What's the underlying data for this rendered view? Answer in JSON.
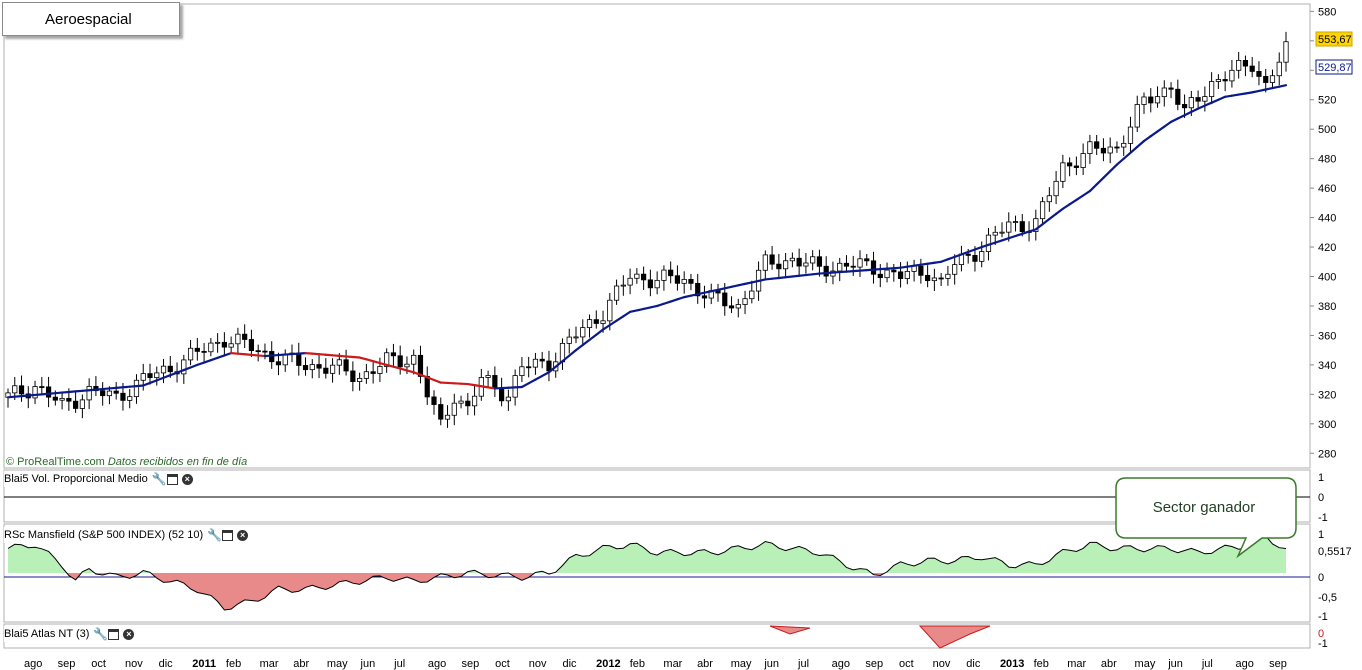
{
  "title": "Aeroespacial",
  "credit": {
    "brand": "© ProRealTime.com",
    "source": "Datos recibidos en fin de día"
  },
  "colors": {
    "candle_up": "#ffffff",
    "candle_down": "#000000",
    "ma_up": "#0a1a8c",
    "ma_down": "#cc1a1a",
    "rs_pos": "#b8f0b8",
    "rs_neg": "#e88a8a",
    "callout_border": "#3a7a2a"
  },
  "panels": {
    "vol": {
      "label": "Blai5 Vol. Proporcional Medio",
      "ticks": [
        "1",
        "0",
        "-1"
      ]
    },
    "rs": {
      "label": "RSc Mansfield (S&P 500 INDEX) (52 10)",
      "ticks": [
        "1",
        "0,5517",
        "0",
        "-0,5",
        "-1"
      ]
    },
    "atlas": {
      "label": "Blai5 Atlas NT (3)",
      "ticks": [
        "0",
        "-1"
      ]
    }
  },
  "callout": {
    "text": "Sector ganador"
  },
  "price_labels": {
    "last": "553,67",
    "ma": "529,87"
  },
  "chart_data": {
    "type": "candlestick",
    "ylim": [
      270,
      585
    ],
    "y_ticks": [
      280,
      300,
      320,
      340,
      360,
      380,
      400,
      420,
      440,
      460,
      480,
      500,
      520,
      540,
      560,
      580
    ],
    "x_labels": [
      "ago",
      "sep",
      "oct",
      "nov",
      "dic",
      "2011",
      "feb",
      "mar",
      "abr",
      "may",
      "jun",
      "jul",
      "ago",
      "sep",
      "oct",
      "nov",
      "dic",
      "2012",
      "feb",
      "mar",
      "abr",
      "may",
      "jun",
      "jul",
      "ago",
      "sep",
      "oct",
      "nov",
      "dic",
      "2013",
      "feb",
      "mar",
      "abr",
      "may",
      "jun",
      "jul",
      "ago",
      "sep"
    ],
    "close_path": [
      [
        0,
        318
      ],
      [
        4,
        326
      ],
      [
        8,
        312
      ],
      [
        12,
        322
      ],
      [
        16,
        318
      ],
      [
        20,
        330
      ],
      [
        24,
        338
      ],
      [
        28,
        348
      ],
      [
        32,
        358
      ],
      [
        36,
        352
      ],
      [
        40,
        344
      ],
      [
        44,
        340
      ],
      [
        48,
        338
      ],
      [
        52,
        332
      ],
      [
        56,
        342
      ],
      [
        60,
        345
      ],
      [
        62,
        320
      ],
      [
        64,
        298
      ],
      [
        66,
        320
      ],
      [
        68,
        310
      ],
      [
        70,
        330
      ],
      [
        74,
        320
      ],
      [
        76,
        338
      ],
      [
        80,
        342
      ],
      [
        84,
        360
      ],
      [
        88,
        376
      ],
      [
        92,
        400
      ],
      [
        96,
        398
      ],
      [
        100,
        398
      ],
      [
        104,
        385
      ],
      [
        108,
        380
      ],
      [
        112,
        408
      ],
      [
        116,
        412
      ],
      [
        120,
        405
      ],
      [
        124,
        408
      ],
      [
        128,
        406
      ],
      [
        132,
        400
      ],
      [
        136,
        404
      ],
      [
        138,
        395
      ],
      [
        140,
        408
      ],
      [
        144,
        420
      ],
      [
        148,
        435
      ],
      [
        152,
        436
      ],
      [
        156,
        475
      ],
      [
        160,
        485
      ],
      [
        164,
        488
      ],
      [
        168,
        518
      ],
      [
        172,
        530
      ],
      [
        174,
        510
      ],
      [
        178,
        532
      ],
      [
        182,
        540
      ],
      [
        184,
        545
      ],
      [
        186,
        530
      ],
      [
        189,
        553.67
      ]
    ],
    "ma_path": [
      [
        0,
        318
      ],
      [
        10,
        322
      ],
      [
        20,
        326
      ],
      [
        28,
        340
      ],
      [
        33,
        348
      ],
      [
        38,
        346
      ],
      [
        44,
        348
      ],
      [
        52,
        345
      ],
      [
        56,
        340
      ],
      [
        60,
        335
      ],
      [
        64,
        328
      ],
      [
        68,
        327
      ],
      [
        72,
        324
      ],
      [
        76,
        325
      ],
      [
        80,
        335
      ],
      [
        84,
        350
      ],
      [
        88,
        364
      ],
      [
        92,
        376
      ],
      [
        96,
        380
      ],
      [
        100,
        386
      ],
      [
        106,
        392
      ],
      [
        112,
        398
      ],
      [
        120,
        402
      ],
      [
        126,
        404
      ],
      [
        132,
        406
      ],
      [
        138,
        410
      ],
      [
        144,
        420
      ],
      [
        148,
        426
      ],
      [
        152,
        432
      ],
      [
        156,
        446
      ],
      [
        160,
        458
      ],
      [
        164,
        476
      ],
      [
        168,
        492
      ],
      [
        172,
        505
      ],
      [
        176,
        514
      ],
      [
        180,
        522
      ],
      [
        184,
        525
      ],
      [
        189,
        529.87
      ]
    ],
    "last_close": 553.67,
    "last_ma": 529.87,
    "rs_ylim": [
      -1.2,
      1.2
    ],
    "rs_last": 0.5517,
    "rs_path": [
      [
        0,
        0.6
      ],
      [
        4,
        0.7
      ],
      [
        8,
        0.2
      ],
      [
        10,
        -0.2
      ],
      [
        12,
        0.1
      ],
      [
        16,
        -0.1
      ],
      [
        20,
        0.0
      ],
      [
        24,
        -0.2
      ],
      [
        28,
        -0.4
      ],
      [
        32,
        -0.85
      ],
      [
        36,
        -0.7
      ],
      [
        40,
        -0.4
      ],
      [
        44,
        -0.4
      ],
      [
        48,
        -0.3
      ],
      [
        52,
        -0.2
      ],
      [
        56,
        -0.1
      ],
      [
        60,
        -0.2
      ],
      [
        64,
        -0.1
      ],
      [
        68,
        0.0
      ],
      [
        72,
        -0.05
      ],
      [
        76,
        -0.1
      ],
      [
        80,
        0.0
      ],
      [
        84,
        0.4
      ],
      [
        88,
        0.6
      ],
      [
        92,
        0.7
      ],
      [
        96,
        0.5
      ],
      [
        100,
        0.5
      ],
      [
        104,
        0.5
      ],
      [
        108,
        0.6
      ],
      [
        112,
        0.7
      ],
      [
        116,
        0.6
      ],
      [
        120,
        0.5
      ],
      [
        124,
        0.2
      ],
      [
        128,
        -0.05
      ],
      [
        132,
        0.2
      ],
      [
        136,
        0.3
      ],
      [
        140,
        0.3
      ],
      [
        144,
        0.4
      ],
      [
        148,
        0.2
      ],
      [
        152,
        0.2
      ],
      [
        156,
        0.5
      ],
      [
        160,
        0.7
      ],
      [
        164,
        0.6
      ],
      [
        168,
        0.6
      ],
      [
        172,
        0.6
      ],
      [
        176,
        0.5
      ],
      [
        180,
        0.6
      ],
      [
        184,
        0.7
      ],
      [
        186,
        0.9
      ],
      [
        189,
        0.5517
      ]
    ]
  }
}
